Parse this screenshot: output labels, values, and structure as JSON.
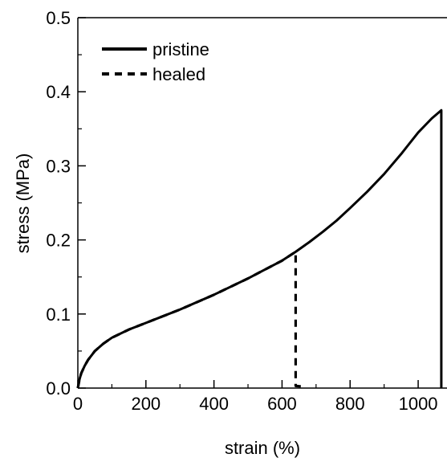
{
  "chart_data": {
    "type": "line",
    "title": "",
    "xlabel": "strain (%)",
    "ylabel": "stress (MPa)",
    "xlim": [
      0,
      1080
    ],
    "ylim": [
      0,
      0.5
    ],
    "xticks": [
      0,
      200,
      400,
      600,
      800,
      1000
    ],
    "xtick_labels": [
      "0",
      "200",
      "400",
      "600",
      "800",
      "1000"
    ],
    "yticks": [
      0,
      0.1,
      0.2,
      0.3,
      0.4,
      0.5
    ],
    "ytick_labels": [
      "0.0",
      "0.1",
      "0.2",
      "0.3",
      "0.4",
      "0.5"
    ],
    "grid": false,
    "legend": {
      "position": "top-left"
    },
    "series": [
      {
        "name": "pristine",
        "line_style": "solid",
        "color": "#000000",
        "x": [
          0,
          5,
          10,
          20,
          30,
          50,
          75,
          100,
          150,
          200,
          250,
          300,
          350,
          400,
          450,
          500,
          550,
          600,
          640,
          680,
          720,
          760,
          800,
          850,
          900,
          950,
          1000,
          1040,
          1068,
          1068
        ],
        "y": [
          0,
          0.012,
          0.02,
          0.03,
          0.038,
          0.05,
          0.06,
          0.068,
          0.079,
          0.088,
          0.097,
          0.106,
          0.116,
          0.126,
          0.137,
          0.148,
          0.16,
          0.172,
          0.184,
          0.197,
          0.211,
          0.226,
          0.243,
          0.265,
          0.289,
          0.316,
          0.345,
          0.364,
          0.375,
          0.0
        ]
      },
      {
        "name": "healed",
        "line_style": "dashed",
        "color": "#000000",
        "x": [
          0,
          5,
          10,
          20,
          30,
          50,
          75,
          100,
          150,
          200,
          250,
          300,
          350,
          400,
          450,
          500,
          550,
          600,
          640,
          640,
          660
        ],
        "y": [
          0,
          0.012,
          0.02,
          0.03,
          0.038,
          0.05,
          0.06,
          0.068,
          0.079,
          0.088,
          0.097,
          0.106,
          0.116,
          0.126,
          0.137,
          0.148,
          0.16,
          0.172,
          0.184,
          0.003,
          0.002
        ]
      }
    ]
  }
}
